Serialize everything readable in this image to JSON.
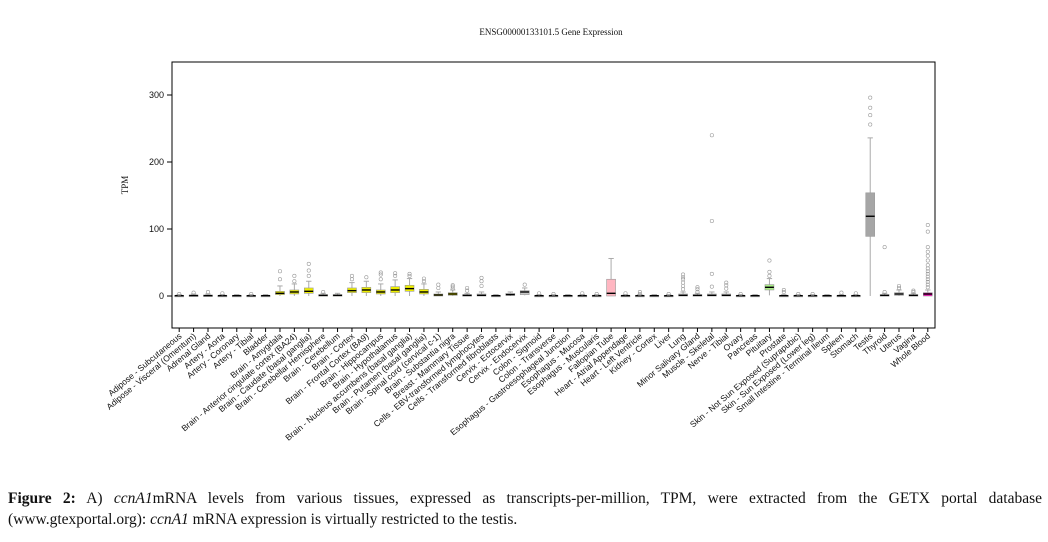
{
  "chart_data": {
    "type": "box",
    "title": "ENSG00000133101.5 Gene Expression",
    "ylabel": "TPM",
    "xlabel": "",
    "ylim": [
      -45,
      345
    ],
    "yticks": [
      0,
      100,
      200,
      300
    ],
    "grid": false,
    "colors": {
      "default": "#c8c8c8",
      "brain": "#eeee00",
      "fallopian": "#ffb6c1",
      "pituitary": "#aaee88",
      "testis": "#a6a6a6",
      "whole_blood": "#ff00bb"
    },
    "categories": [
      "Adipose - Subcutaneous",
      "Adipose - Visceral (Omentum)",
      "Adrenal Gland",
      "Artery - Aorta",
      "Artery - Coronary",
      "Artery - Tibial",
      "Bladder",
      "Brain - Amygdala",
      "Brain - Anterior cingulate cortex (BA24)",
      "Brain - Caudate (basal ganglia)",
      "Brain - Cerebellar Hemisphere",
      "Brain - Cerebellum",
      "Brain - Cortex",
      "Brain - Frontal Cortex (BA9)",
      "Brain - Hippocampus",
      "Brain - Hypothalamus",
      "Brain - Nucleus accumbens (basal ganglia)",
      "Brain - Putamen (basal ganglia)",
      "Brain - Spinal cord (cervical c-1)",
      "Brain - Substantia nigra",
      "Breast - Mammary Tissue",
      "Cells - EBV-transformed lymphocytes",
      "Cells - Transformed fibroblasts",
      "Cervix - Ectocervix",
      "Cervix - Endocervix",
      "Colon - Sigmoid",
      "Colon - Transverse",
      "Esophagus - Gastroesophageal Junction",
      "Esophagus - Mucosa",
      "Esophagus - Muscularis",
      "Fallopian Tube",
      "Heart - Atrial Appendage",
      "Heart - Left Ventricle",
      "Kidney - Cortex",
      "Liver",
      "Lung",
      "Minor Salivary Gland",
      "Muscle - Skeletal",
      "Nerve - Tibial",
      "Ovary",
      "Pancreas",
      "Pituitary",
      "Prostate",
      "Skin - Not Sun Exposed (Suprapubic)",
      "Skin - Sun Exposed (Lower leg)",
      "Small Intestine - Terminal Ileum",
      "Spleen",
      "Stomach",
      "Testis",
      "Thyroid",
      "Uterus",
      "Vagina",
      "Whole Blood"
    ],
    "boxes": [
      {
        "q1": 0,
        "median": 0.5,
        "q3": 1,
        "lo": 0,
        "hi": 2,
        "color": "default",
        "out": [
          3
        ]
      },
      {
        "q1": 0,
        "median": 0.6,
        "q3": 1.5,
        "lo": 0,
        "hi": 3,
        "color": "default",
        "out": [
          5
        ]
      },
      {
        "q1": 0,
        "median": 0.5,
        "q3": 1.5,
        "lo": 0,
        "hi": 3,
        "color": "default",
        "out": [
          6
        ]
      },
      {
        "q1": 0,
        "median": 0.5,
        "q3": 1,
        "lo": 0,
        "hi": 2,
        "color": "default",
        "out": [
          4
        ]
      },
      {
        "q1": 0,
        "median": 0.5,
        "q3": 1,
        "lo": 0,
        "hi": 2,
        "color": "default",
        "out": []
      },
      {
        "q1": 0,
        "median": 0.4,
        "q3": 1,
        "lo": 0,
        "hi": 2,
        "color": "default",
        "out": [
          3
        ]
      },
      {
        "q1": 0,
        "median": 0.5,
        "q3": 1,
        "lo": 0,
        "hi": 2,
        "color": "default",
        "out": []
      },
      {
        "q1": 2,
        "median": 4,
        "q3": 7,
        "lo": 0,
        "hi": 15,
        "color": "brain",
        "out": [
          25,
          37
        ]
      },
      {
        "q1": 3,
        "median": 6,
        "q3": 9,
        "lo": 0,
        "hi": 18,
        "color": "brain",
        "out": [
          22,
          30
        ]
      },
      {
        "q1": 4,
        "median": 7,
        "q3": 12,
        "lo": 0,
        "hi": 22,
        "color": "brain",
        "out": [
          30,
          38,
          48
        ]
      },
      {
        "q1": 0,
        "median": 1,
        "q3": 2,
        "lo": 0,
        "hi": 4,
        "color": "brain",
        "out": [
          6
        ]
      },
      {
        "q1": 0,
        "median": 1,
        "q3": 2,
        "lo": 0,
        "hi": 4,
        "color": "brain",
        "out": []
      },
      {
        "q1": 5,
        "median": 8,
        "q3": 12,
        "lo": 0,
        "hi": 20,
        "color": "brain",
        "out": [
          25,
          30
        ]
      },
      {
        "q1": 5,
        "median": 9,
        "q3": 13,
        "lo": 0,
        "hi": 22,
        "color": "brain",
        "out": [
          28
        ]
      },
      {
        "q1": 3,
        "median": 6,
        "q3": 9,
        "lo": 0,
        "hi": 18,
        "color": "brain",
        "out": [
          25,
          32,
          35
        ]
      },
      {
        "q1": 5,
        "median": 9,
        "q3": 14,
        "lo": 0,
        "hi": 24,
        "color": "brain",
        "out": [
          30,
          34
        ]
      },
      {
        "q1": 7,
        "median": 11,
        "q3": 16,
        "lo": 0,
        "hi": 26,
        "color": "brain",
        "out": [
          30,
          33
        ]
      },
      {
        "q1": 3,
        "median": 6,
        "q3": 10,
        "lo": 0,
        "hi": 18,
        "color": "brain",
        "out": [
          22,
          26
        ]
      },
      {
        "q1": 0,
        "median": 1.5,
        "q3": 3,
        "lo": 0,
        "hi": 6,
        "color": "brain",
        "out": [
          12,
          17
        ]
      },
      {
        "q1": 1,
        "median": 3,
        "q3": 5,
        "lo": 0,
        "hi": 9,
        "color": "brain",
        "out": [
          11,
          14,
          16
        ]
      },
      {
        "q1": 0,
        "median": 1,
        "q3": 2,
        "lo": 0,
        "hi": 4,
        "color": "default",
        "out": [
          8,
          12
        ]
      },
      {
        "q1": 0,
        "median": 1,
        "q3": 3,
        "lo": 0,
        "hi": 6,
        "color": "default",
        "out": [
          15,
          22,
          27
        ]
      },
      {
        "q1": 0,
        "median": 0.5,
        "q3": 1,
        "lo": 0,
        "hi": 2,
        "color": "default",
        "out": []
      },
      {
        "q1": 1,
        "median": 2,
        "q3": 4,
        "lo": 0,
        "hi": 6,
        "color": "default",
        "out": []
      },
      {
        "q1": 2,
        "median": 6,
        "q3": 8,
        "lo": 1,
        "hi": 12,
        "color": "default",
        "out": [
          17
        ]
      },
      {
        "q1": 0,
        "median": 0.5,
        "q3": 1,
        "lo": 0,
        "hi": 2,
        "color": "default",
        "out": [
          4
        ]
      },
      {
        "q1": 0,
        "median": 0.5,
        "q3": 1,
        "lo": 0,
        "hi": 2,
        "color": "default",
        "out": [
          3
        ]
      },
      {
        "q1": 0,
        "median": 0.5,
        "q3": 1,
        "lo": 0,
        "hi": 2,
        "color": "default",
        "out": []
      },
      {
        "q1": 0,
        "median": 0.5,
        "q3": 1,
        "lo": 0,
        "hi": 2,
        "color": "default",
        "out": [
          4
        ]
      },
      {
        "q1": 0,
        "median": 0.5,
        "q3": 1,
        "lo": 0,
        "hi": 2,
        "color": "default",
        "out": [
          3
        ]
      },
      {
        "q1": 0,
        "median": 4,
        "q3": 25,
        "lo": 0,
        "hi": 56,
        "color": "fallopian",
        "out": []
      },
      {
        "q1": 0,
        "median": 0.5,
        "q3": 1,
        "lo": 0,
        "hi": 2,
        "color": "default",
        "out": [
          4
        ]
      },
      {
        "q1": 0,
        "median": 0.5,
        "q3": 1,
        "lo": 0,
        "hi": 2,
        "color": "default",
        "out": [
          3,
          6
        ]
      },
      {
        "q1": 0,
        "median": 0.5,
        "q3": 1,
        "lo": 0,
        "hi": 2,
        "color": "default",
        "out": []
      },
      {
        "q1": 0,
        "median": 0.4,
        "q3": 1,
        "lo": 0,
        "hi": 2,
        "color": "default",
        "out": [
          3
        ]
      },
      {
        "q1": 0,
        "median": 1,
        "q3": 3,
        "lo": 0,
        "hi": 6,
        "color": "default",
        "out": [
          10,
          15,
          20,
          25,
          28,
          32
        ]
      },
      {
        "q1": 0,
        "median": 1,
        "q3": 2,
        "lo": 0,
        "hi": 4,
        "color": "default",
        "out": [
          6,
          10,
          13
        ]
      },
      {
        "q1": 0,
        "median": 1,
        "q3": 3,
        "lo": 0,
        "hi": 6,
        "color": "default",
        "out": [
          14,
          33,
          112,
          240
        ]
      },
      {
        "q1": 0,
        "median": 1,
        "q3": 3,
        "lo": 0,
        "hi": 6,
        "color": "default",
        "out": [
          11,
          16,
          20
        ]
      },
      {
        "q1": 0,
        "median": 0.5,
        "q3": 1,
        "lo": 0,
        "hi": 2,
        "color": "default",
        "out": [
          3
        ]
      },
      {
        "q1": 0,
        "median": 0.5,
        "q3": 1,
        "lo": 0,
        "hi": 2,
        "color": "default",
        "out": []
      },
      {
        "q1": 9,
        "median": 13,
        "q3": 17,
        "lo": 1,
        "hi": 26,
        "color": "pituitary",
        "out": [
          30,
          36,
          53
        ]
      },
      {
        "q1": 0,
        "median": 0.5,
        "q3": 1,
        "lo": 0,
        "hi": 2,
        "color": "default",
        "out": [
          6,
          9
        ]
      },
      {
        "q1": 0,
        "median": 0.5,
        "q3": 1,
        "lo": 0,
        "hi": 2,
        "color": "default",
        "out": [
          3
        ]
      },
      {
        "q1": 0,
        "median": 0.5,
        "q3": 1,
        "lo": 0,
        "hi": 2,
        "color": "default",
        "out": [
          3
        ]
      },
      {
        "q1": 0,
        "median": 0.5,
        "q3": 1,
        "lo": 0,
        "hi": 2,
        "color": "default",
        "out": []
      },
      {
        "q1": 0,
        "median": 0.5,
        "q3": 1,
        "lo": 0,
        "hi": 2,
        "color": "default",
        "out": [
          5
        ]
      },
      {
        "q1": 0,
        "median": 0.5,
        "q3": 1,
        "lo": 0,
        "hi": 2,
        "color": "default",
        "out": [
          4
        ]
      },
      {
        "q1": 89,
        "median": 119,
        "q3": 154,
        "lo": 0,
        "hi": 236,
        "color": "testis",
        "out": [
          256,
          270,
          281,
          296
        ]
      },
      {
        "q1": 0,
        "median": 1,
        "q3": 2,
        "lo": 0,
        "hi": 4,
        "color": "default",
        "out": [
          6,
          73
        ]
      },
      {
        "q1": 1,
        "median": 3,
        "q3": 5,
        "lo": 0,
        "hi": 9,
        "color": "default",
        "out": [
          12,
          15
        ]
      },
      {
        "q1": 0,
        "median": 1,
        "q3": 2,
        "lo": 0,
        "hi": 4,
        "color": "default",
        "out": [
          6,
          8
        ]
      },
      {
        "q1": 0,
        "median": 3,
        "q3": 5,
        "lo": 0,
        "hi": 9,
        "color": "whole_blood",
        "out": [
          13,
          17,
          21,
          25,
          29,
          33,
          37,
          41,
          46,
          53,
          60,
          66,
          73,
          96,
          106
        ]
      }
    ]
  },
  "caption": {
    "label": "Figure 2:",
    "part1": " A) ",
    "gene1": "ccnA1",
    "part2": "mRNA levels from various tissues, expressed as transcripts-per-million, TPM, were extracted from the GETX portal database (www.gtexportal.org): ",
    "gene2": "ccnA1",
    "part3": " mRNA expression is virtually restricted to the testis."
  }
}
